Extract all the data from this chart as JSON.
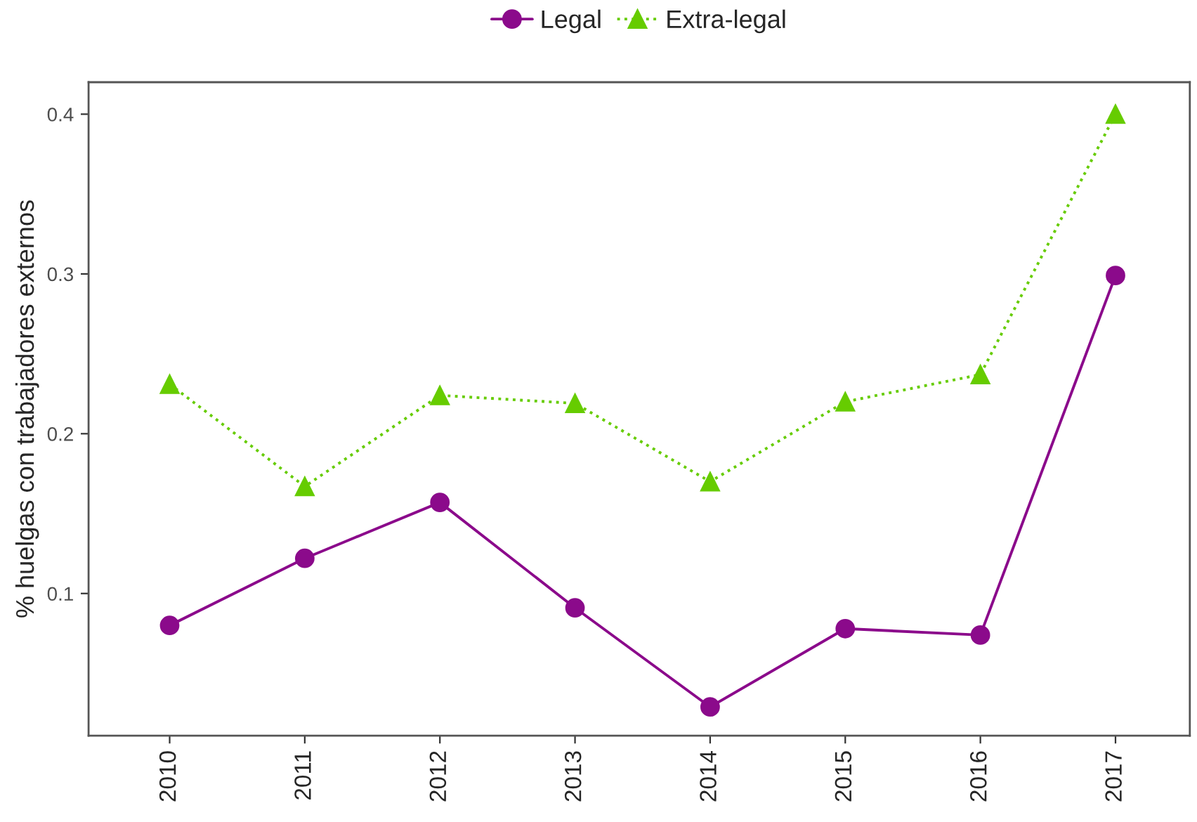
{
  "chart_data": {
    "type": "line",
    "ylabel": "% huelgas con trabajadores externos",
    "categories": [
      "2010",
      "2011",
      "2012",
      "2013",
      "2014",
      "2015",
      "2016",
      "2017"
    ],
    "series": [
      {
        "name": "Legal",
        "color": "#8b0a8b",
        "marker": "circle",
        "line_style": "solid",
        "values": [
          0.08,
          0.122,
          0.157,
          0.091,
          0.029,
          0.078,
          0.074,
          0.299
        ]
      },
      {
        "name": "Extra-legal",
        "color": "#66cc00",
        "marker": "triangle",
        "line_style": "dotted",
        "values": [
          0.231,
          0.167,
          0.224,
          0.219,
          0.17,
          0.22,
          0.237,
          0.4
        ]
      }
    ],
    "ylim": [
      0.011,
      0.42
    ],
    "yticks": [
      0.1,
      0.2,
      0.3,
      0.4
    ],
    "grid": false,
    "legend": "top"
  }
}
